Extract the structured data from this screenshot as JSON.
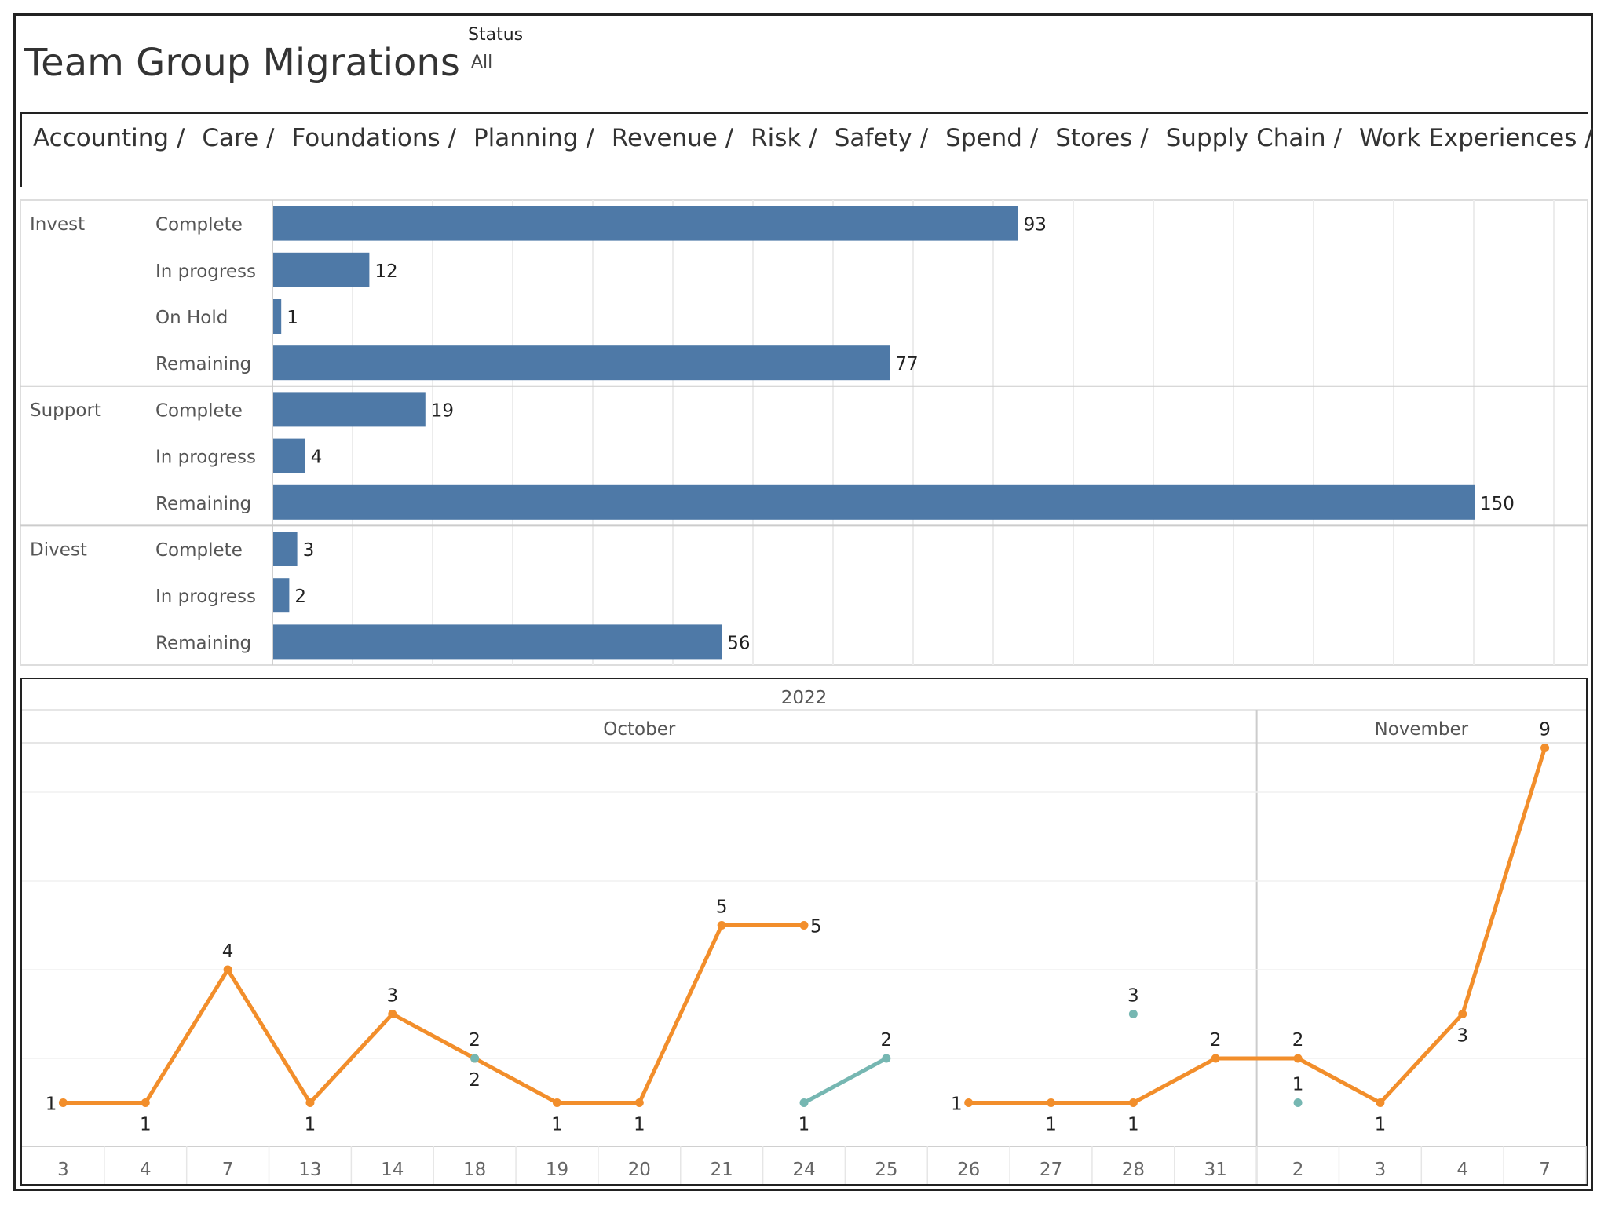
{
  "header": {
    "title": "Team Group Migrations",
    "filter_label": "Status",
    "filter_value": "All"
  },
  "nav": {
    "items": [
      "Accounting /",
      "Care /",
      "Foundations /",
      "Planning /",
      "Revenue /",
      "Risk /",
      "Safety /",
      "Spend /",
      "Stores /",
      "Supply Chain /",
      "Work Experiences /"
    ]
  },
  "colors": {
    "bar": "#4e79a7",
    "line_primary": "#f28e2b",
    "line_secondary": "#76b7b2",
    "grid": "#ececec",
    "text": "#555555"
  },
  "chart_data": [
    {
      "type": "bar",
      "orientation": "horizontal",
      "groups": [
        {
          "name": "Invest",
          "rows": [
            {
              "label": "Complete",
              "value": 93
            },
            {
              "label": "In progress",
              "value": 12
            },
            {
              "label": "On Hold",
              "value": 1
            },
            {
              "label": "Remaining",
              "value": 77
            }
          ]
        },
        {
          "name": "Support",
          "rows": [
            {
              "label": "Complete",
              "value": 19
            },
            {
              "label": "In progress",
              "value": 4
            },
            {
              "label": "Remaining",
              "value": 150
            }
          ]
        },
        {
          "name": "Divest",
          "rows": [
            {
              "label": "Complete",
              "value": 3
            },
            {
              "label": "In progress",
              "value": 2
            },
            {
              "label": "Remaining",
              "value": 56
            }
          ]
        }
      ],
      "xlim": [
        0,
        160
      ],
      "grid": true
    },
    {
      "type": "line",
      "year_label": "2022",
      "month_headers": [
        {
          "label": "October",
          "from": 0,
          "to": 14
        },
        {
          "label": "November",
          "from": 15,
          "to": 18
        }
      ],
      "categories": [
        "3",
        "4",
        "7",
        "13",
        "14",
        "18",
        "19",
        "20",
        "21",
        "24",
        "25",
        "26",
        "27",
        "28",
        "31",
        "2",
        "3",
        "4",
        "7"
      ],
      "series": [
        {
          "color_key": "line_primary",
          "values": [
            1,
            1,
            4,
            1,
            3,
            2,
            1,
            1,
            5,
            5,
            null,
            1,
            1,
            1,
            2,
            2,
            1,
            3,
            9
          ],
          "label_pos": [
            "left",
            "below",
            "above",
            "below",
            "above",
            "above",
            "below",
            "below",
            "above",
            "right",
            null,
            "left",
            "below",
            "below",
            "above",
            "above",
            "below",
            "below",
            "above"
          ]
        },
        {
          "color_key": "line_secondary",
          "values": [
            null,
            null,
            null,
            null,
            null,
            2,
            null,
            null,
            null,
            1,
            2,
            null,
            null,
            3,
            null,
            1,
            null,
            null,
            null
          ],
          "label_pos": [
            null,
            null,
            null,
            null,
            null,
            "below",
            null,
            null,
            null,
            "below",
            "above",
            null,
            null,
            "above",
            null,
            "above",
            null,
            null,
            null
          ]
        }
      ],
      "ylim": [
        0,
        10
      ],
      "grid": true
    }
  ]
}
